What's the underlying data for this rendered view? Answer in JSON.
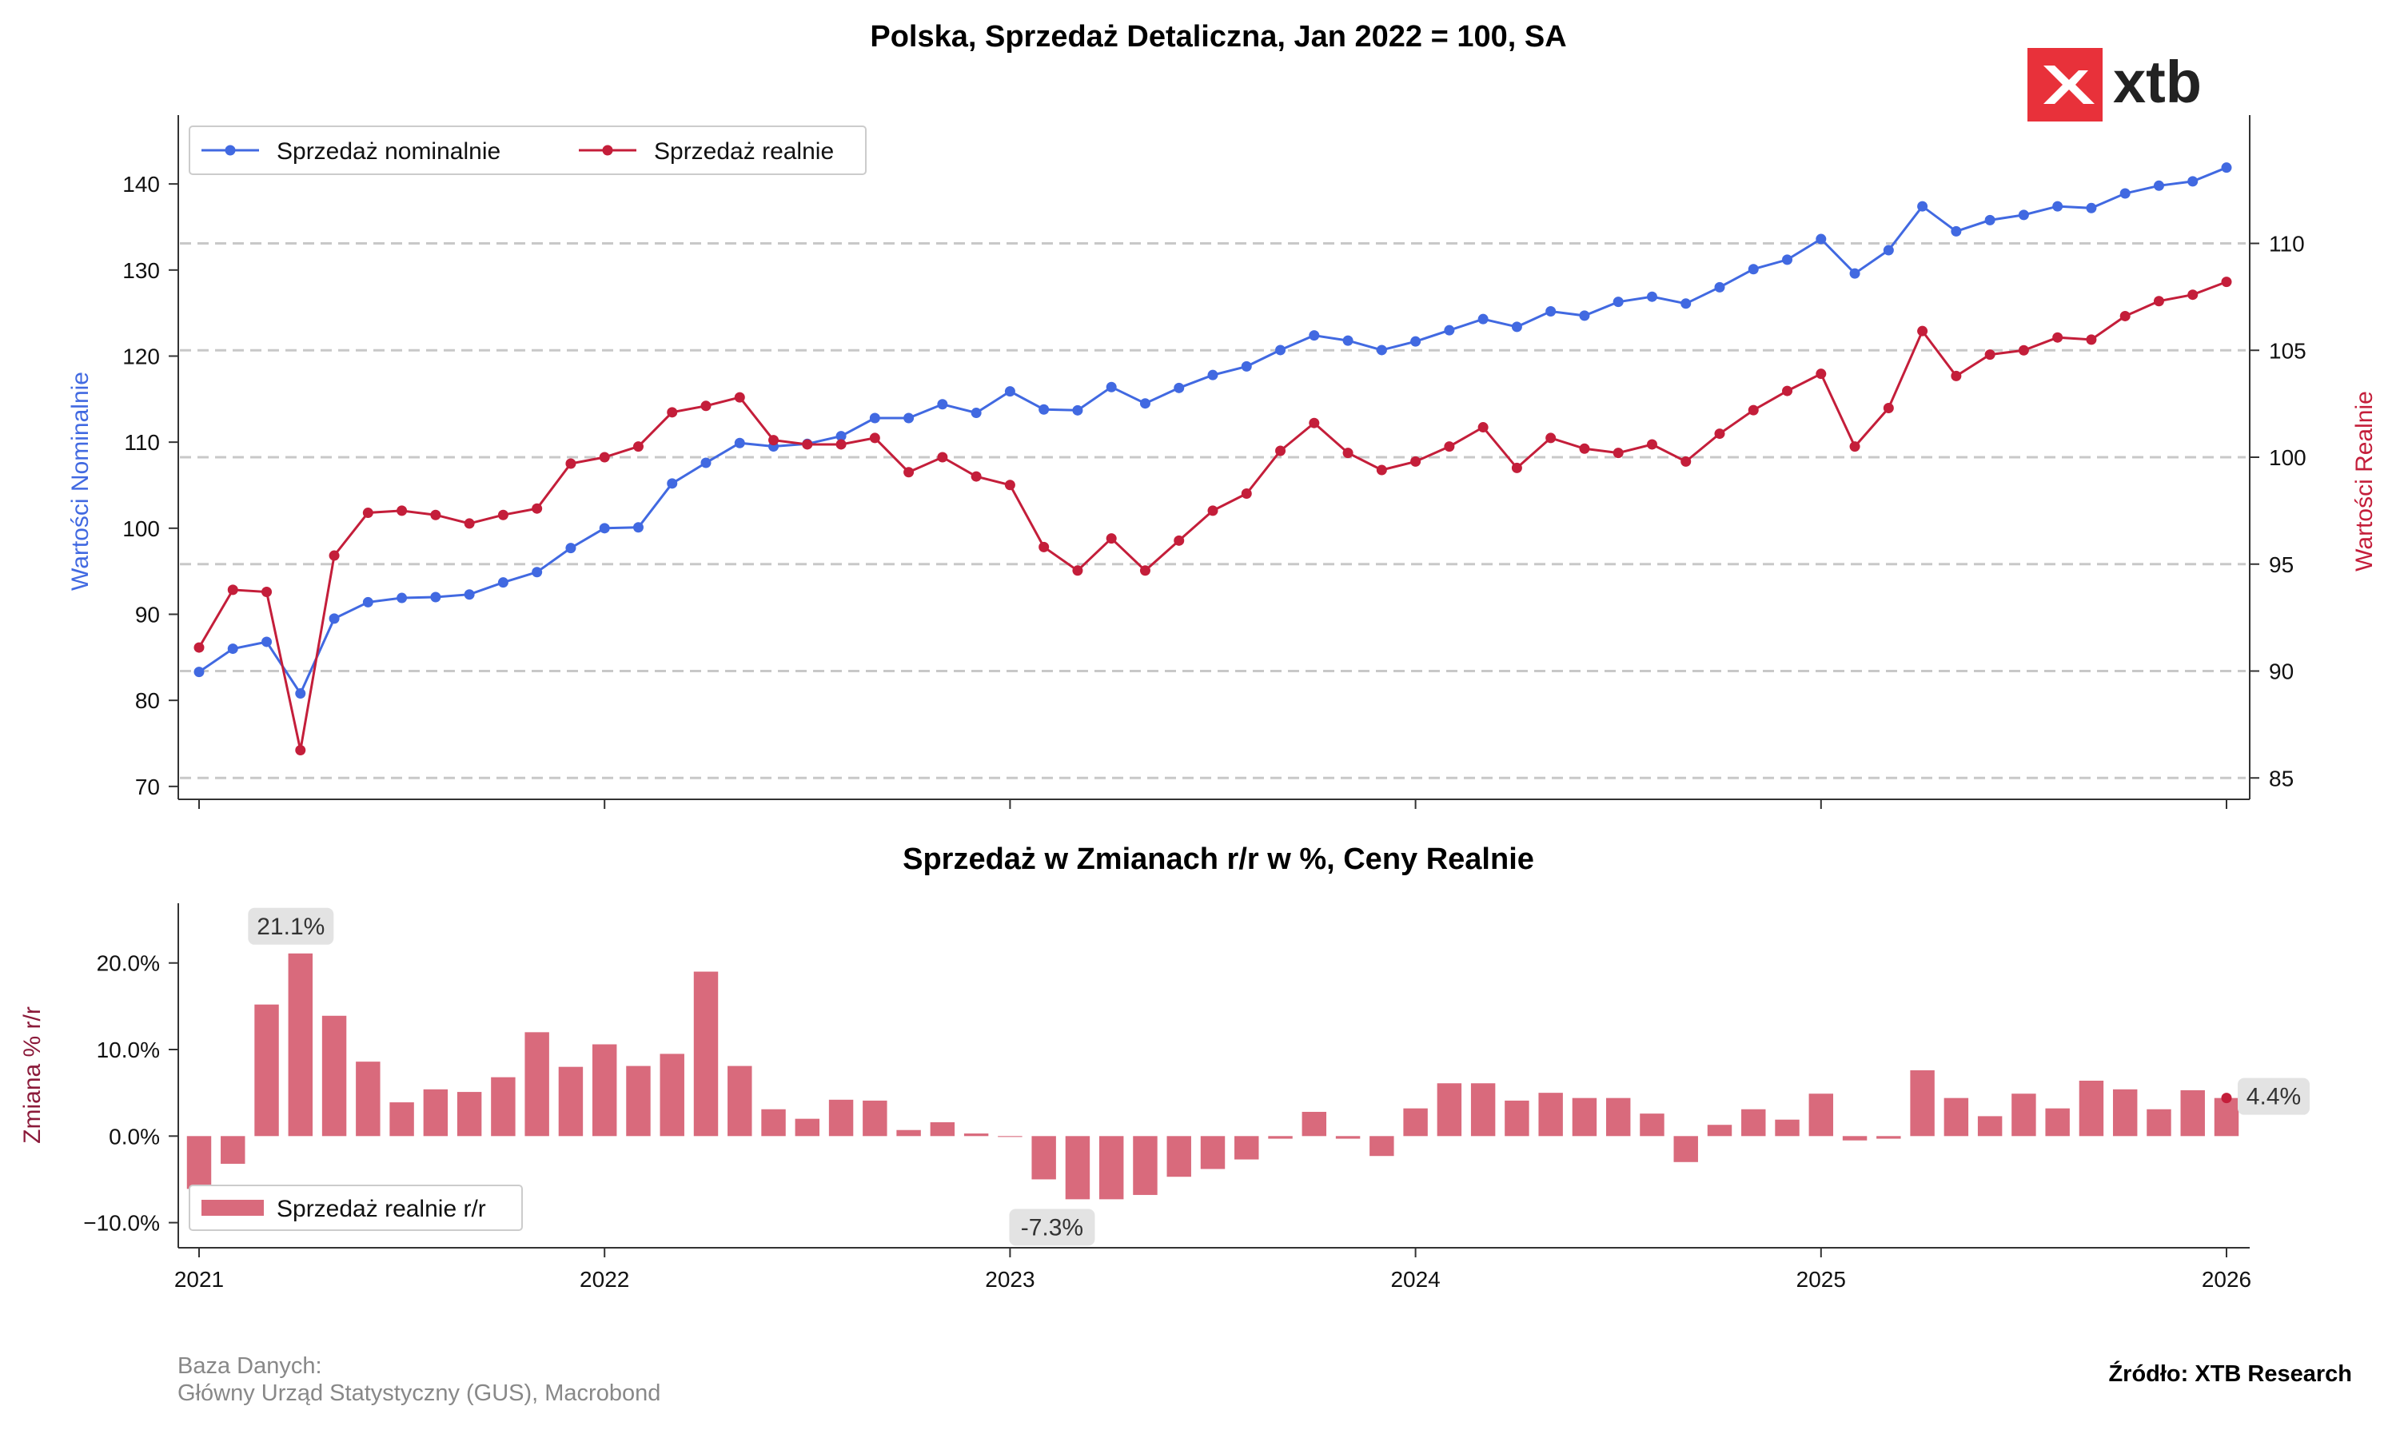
{
  "brand": {
    "logo_text": "xtb",
    "logo_color": "#e8313a"
  },
  "footer": {
    "db_label": "Baza Danych:",
    "db_sources": "Główny Urząd Statystyczny (GUS), Macrobond",
    "source": "Źródło: XTB Research"
  },
  "colors": {
    "nominal": "#4169e1",
    "real": "#c41e3a",
    "bar": "#d96a7c",
    "grid": "#c8c8c8"
  },
  "chart_data": [
    {
      "type": "line",
      "title": "Polska, Sprzedaż Detaliczna, Jan 2022 = 100, SA",
      "ylabel_left": "Wartości Nominalnie",
      "ylabel_right": "Wartości Realnie",
      "ylim_left": [
        68.5,
        148
      ],
      "ylim_right": [
        84,
        116
      ],
      "yticks_left": [
        70,
        80,
        90,
        100,
        110,
        120,
        130,
        140
      ],
      "yticks_right": [
        85,
        90,
        95,
        100,
        105,
        110
      ],
      "xticks": [
        "2021",
        "2022",
        "2023",
        "2024",
        "2025",
        "2026"
      ],
      "grid": "right-axis horizontal dashed",
      "legend": "top-left",
      "x": [
        "2021-01",
        "2021-02",
        "2021-03",
        "2021-04",
        "2021-05",
        "2021-06",
        "2021-07",
        "2021-08",
        "2021-09",
        "2021-10",
        "2021-11",
        "2021-12",
        "2022-01",
        "2022-02",
        "2022-03",
        "2022-04",
        "2022-05",
        "2022-06",
        "2022-07",
        "2022-08",
        "2022-09",
        "2022-10",
        "2022-11",
        "2022-12",
        "2023-01",
        "2023-02",
        "2023-03",
        "2023-04",
        "2023-05",
        "2023-06",
        "2023-07",
        "2023-08",
        "2023-09",
        "2023-10",
        "2023-11",
        "2023-12",
        "2024-01",
        "2024-02",
        "2024-03",
        "2024-04",
        "2024-05",
        "2024-06",
        "2024-07",
        "2024-08",
        "2024-09",
        "2024-10",
        "2024-11",
        "2024-12",
        "2025-01",
        "2025-02",
        "2025-03",
        "2025-04",
        "2025-05",
        "2025-06",
        "2025-07",
        "2025-08",
        "2025-09",
        "2025-10",
        "2025-11",
        "2025-12",
        "2026-01"
      ],
      "series": [
        {
          "name": "Sprzedaż nominalnie",
          "axis": "left",
          "values": [
            83.3,
            86.0,
            86.8,
            80.8,
            89.5,
            91.4,
            91.9,
            92.0,
            92.3,
            93.7,
            94.9,
            97.7,
            100.0,
            100.1,
            105.2,
            107.6,
            109.9,
            109.5,
            109.8,
            110.7,
            112.8,
            112.8,
            114.4,
            113.4,
            115.9,
            113.8,
            113.7,
            116.4,
            114.5,
            116.3,
            117.8,
            118.8,
            120.7,
            122.4,
            121.8,
            120.7,
            121.7,
            123.0,
            124.3,
            123.4,
            125.2,
            124.7,
            126.3,
            126.9,
            126.1,
            128.0,
            130.1,
            131.2,
            133.6,
            129.6,
            132.3,
            137.4,
            134.5,
            135.8,
            136.4,
            137.4,
            137.2,
            138.9,
            139.8,
            140.3,
            141.9
          ]
        },
        {
          "name": "Sprzedaż realnie",
          "axis": "right",
          "values": [
            91.1,
            93.8,
            93.7,
            86.3,
            95.4,
            97.4,
            97.5,
            97.3,
            96.9,
            97.3,
            97.6,
            99.7,
            100.0,
            100.5,
            102.1,
            102.4,
            102.8,
            100.8,
            100.6,
            100.6,
            100.9,
            99.3,
            100.0,
            99.1,
            98.7,
            95.8,
            94.7,
            96.2,
            94.7,
            96.1,
            97.5,
            98.3,
            100.3,
            101.6,
            100.2,
            99.4,
            99.8,
            100.5,
            101.4,
            99.5,
            100.9,
            100.4,
            100.2,
            100.6,
            99.8,
            101.1,
            102.2,
            103.1,
            103.9,
            100.5,
            102.3,
            105.9,
            103.8,
            104.8,
            105.0,
            105.6,
            105.5,
            106.6,
            107.3,
            107.6,
            108.2
          ]
        }
      ]
    },
    {
      "type": "bar",
      "title": "Sprzedaż w Zmianach r/r w %, Ceny Realnie",
      "ylabel": "Zmiana % r/r",
      "ylim": [
        -12.9,
        26.9
      ],
      "yticks": [
        -10.0,
        0.0,
        10.0,
        20.0
      ],
      "ytick_labels": [
        "−10.0%",
        "0.0%",
        "10.0%",
        "20.0%"
      ],
      "xticks": [
        "2021",
        "2022",
        "2023",
        "2024",
        "2025",
        "2026"
      ],
      "legend": "bottom-left",
      "series": [
        {
          "name": "Sprzedaż realnie r/r",
          "values": [
            -6.1,
            -3.2,
            15.2,
            21.1,
            13.9,
            8.6,
            3.9,
            5.4,
            5.1,
            6.8,
            12.0,
            8.0,
            10.6,
            8.1,
            9.5,
            19.0,
            8.1,
            3.1,
            2.0,
            4.2,
            4.1,
            0.7,
            1.6,
            0.3,
            -0.1,
            -5.0,
            -7.3,
            -7.3,
            -6.8,
            -4.7,
            -3.8,
            -2.7,
            -0.3,
            2.8,
            -0.3,
            -2.3,
            3.2,
            6.1,
            6.1,
            4.1,
            5.0,
            4.4,
            4.4,
            2.6,
            -3.0,
            1.3,
            3.1,
            1.9,
            4.9,
            -0.5,
            -0.3,
            7.6,
            4.4,
            2.3,
            4.9,
            3.2,
            6.4,
            5.4,
            3.1,
            5.3,
            4.4
          ]
        }
      ],
      "annotations": {
        "max_label": "21.1%",
        "min_label": "-7.3%",
        "last_label": "4.4%"
      }
    }
  ]
}
